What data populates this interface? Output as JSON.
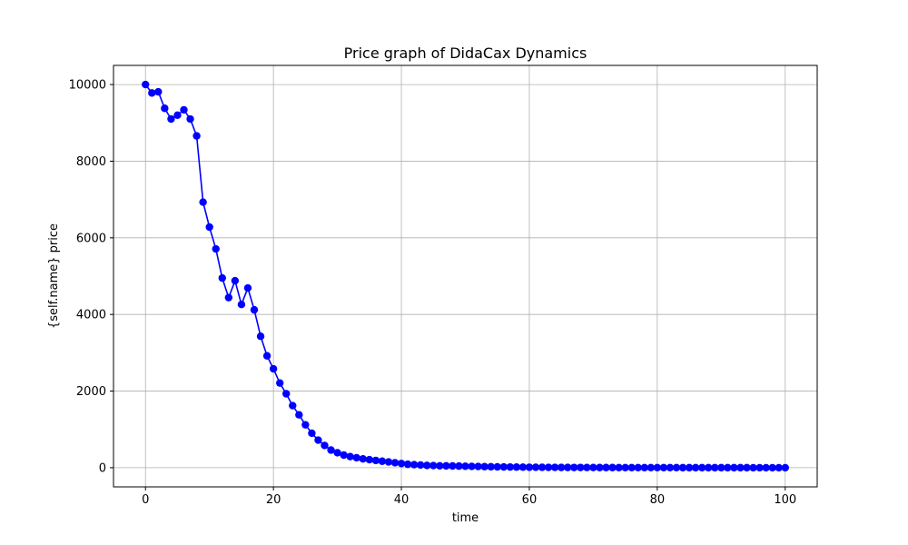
{
  "chart_data": {
    "type": "line",
    "title": "Price graph of DidaCax Dynamics",
    "xlabel": "time",
    "ylabel": "{self.name} price",
    "xlim": [
      -5,
      105
    ],
    "ylim": [
      -500,
      10500
    ],
    "xticks": [
      0,
      20,
      40,
      60,
      80,
      100
    ],
    "yticks": [
      0,
      2000,
      4000,
      6000,
      8000,
      10000
    ],
    "grid": true,
    "legend": "none",
    "series": [
      {
        "color": "#0000ff",
        "marker": "circle",
        "x": [
          0,
          1,
          2,
          3,
          4,
          5,
          6,
          7,
          8,
          9,
          10,
          11,
          12,
          13,
          14,
          15,
          16,
          17,
          18,
          19,
          20,
          21,
          22,
          23,
          24,
          25,
          26,
          27,
          28,
          29,
          30,
          31,
          32,
          33,
          34,
          35,
          36,
          37,
          38,
          39,
          40,
          41,
          42,
          43,
          44,
          45,
          46,
          47,
          48,
          49,
          50,
          51,
          52,
          53,
          54,
          55,
          56,
          57,
          58,
          59,
          60,
          61,
          62,
          63,
          64,
          65,
          66,
          67,
          68,
          69,
          70,
          71,
          72,
          73,
          74,
          75,
          76,
          77,
          78,
          79,
          80,
          81,
          82,
          83,
          84,
          85,
          86,
          87,
          88,
          89,
          90,
          91,
          92,
          93,
          94,
          95,
          96,
          97,
          98,
          99,
          100
        ],
        "values": [
          10000,
          9780,
          9810,
          9380,
          9100,
          9200,
          9340,
          9100,
          8660,
          6930,
          6280,
          5710,
          4950,
          4440,
          4880,
          4260,
          4690,
          4120,
          3430,
          2920,
          2580,
          2210,
          1930,
          1620,
          1380,
          1120,
          900,
          720,
          580,
          460,
          390,
          330,
          290,
          260,
          230,
          210,
          190,
          170,
          150,
          130,
          110,
          90,
          80,
          70,
          60,
          55,
          50,
          48,
          45,
          42,
          38,
          35,
          32,
          28,
          25,
          22,
          20,
          18,
          16,
          14,
          12,
          11,
          10,
          9,
          8,
          7,
          7,
          6,
          6,
          5,
          5,
          4,
          4,
          4,
          3,
          3,
          3,
          3,
          2,
          2,
          2,
          2,
          2,
          2,
          1,
          1,
          1,
          1,
          1,
          1,
          1,
          1,
          1,
          1,
          1,
          0,
          0,
          0,
          0,
          0,
          0
        ]
      }
    ]
  }
}
